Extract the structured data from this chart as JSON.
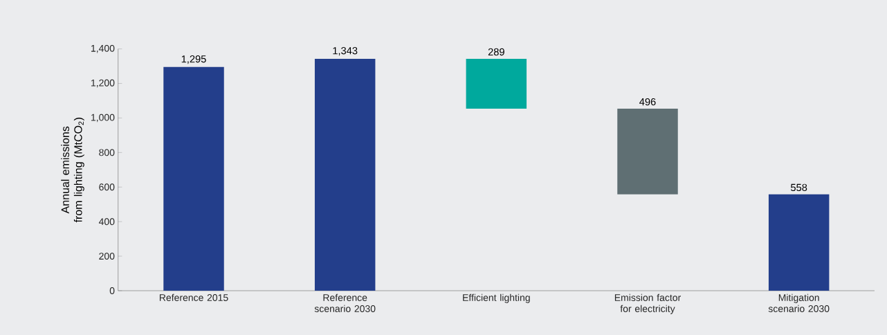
{
  "chart_data": {
    "type": "bar",
    "ylabel": "Annual emissions from lighting (MtCO$_{2}$)",
    "categories": [
      "Reference 2015",
      "Reference scenario 2030",
      "Efficient lighting",
      "Emission factor for electricity",
      "Mitigation scenario 2030"
    ],
    "values": [
      1295,
      1343,
      289,
      496,
      558
    ],
    "base": [
      null,
      null,
      1054,
      558,
      null
    ],
    "colors": [
      "#233e8b",
      "#233e8b",
      "#00a99d",
      "#5f6f73",
      "#233e8b"
    ],
    "value_labels": [
      "1,295",
      "1,343",
      "289",
      "496",
      "558"
    ],
    "ylim": [
      0,
      1400
    ],
    "yticks": [
      0,
      {
        "value": 200,
        "label": "200"
      },
      400,
      600,
      800,
      {
        "value": 1000,
        "label": "1,000"
      },
      {
        "value": 1200,
        "label": "1,200"
      },
      {
        "value": 1400,
        "label": "1,400"
      }
    ]
  }
}
